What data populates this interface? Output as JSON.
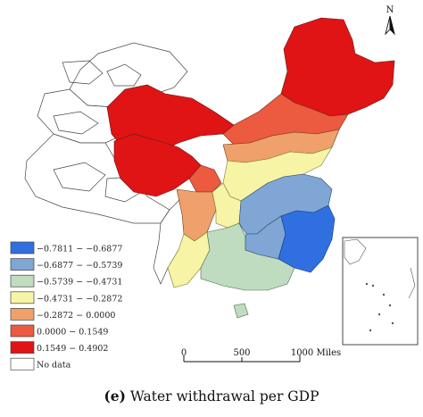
{
  "north_label": "N",
  "legend": [
    {
      "label": "−0.7811 − −0.6877",
      "color": "#2f6fe0"
    },
    {
      "label": "−0.6877 − −0.5739",
      "color": "#7fa6d4"
    },
    {
      "label": "−0.5739 − −0.4731",
      "color": "#bfdcc0"
    },
    {
      "label": "−0.4731 − −0.2872",
      "color": "#f7f4a6"
    },
    {
      "label": "−0.2872 − 0.0000",
      "color": "#f0a06a"
    },
    {
      "label": "0.0000 − 0.1549",
      "color": "#ec5a3f"
    },
    {
      "label": "0.1549 − 0.4902",
      "color": "#e01414"
    },
    {
      "label": "No data",
      "color": "#ffffff"
    }
  ],
  "scale_bar": {
    "labels": [
      "0",
      "500",
      "1000 Miles"
    ]
  },
  "caption": {
    "panel": "(e)",
    "title": "Water withdrawal per GDP"
  }
}
